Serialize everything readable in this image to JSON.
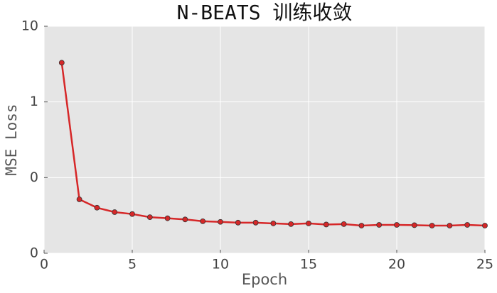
{
  "chart_data": {
    "type": "line",
    "title": "N-BEATS 训练收敛",
    "x_label": "Epoch",
    "y_label": "MSE Loss",
    "x": [
      1,
      2,
      3,
      4,
      5,
      6,
      7,
      8,
      9,
      10,
      11,
      12,
      13,
      14,
      15,
      16,
      17,
      18,
      19,
      20,
      21,
      22,
      23,
      24,
      25
    ],
    "series": [
      {
        "name": "MSE Loss",
        "color": "#d62728",
        "values": [
          3.3,
          0.0516,
          0.04,
          0.035,
          0.033,
          0.03,
          0.029,
          0.028,
          0.0265,
          0.026,
          0.0254,
          0.0254,
          0.0248,
          0.0243,
          0.0248,
          0.024,
          0.0243,
          0.0232,
          0.0237,
          0.0237,
          0.0235,
          0.0232,
          0.0232,
          0.0237,
          0.0232
        ]
      }
    ],
    "xlim": [
      0,
      25
    ],
    "xticks": [
      0,
      5,
      10,
      15,
      20,
      25
    ],
    "ylim": [
      0.01,
      10
    ],
    "yscale": "log",
    "yticks": [
      {
        "value": 0.01,
        "label": "0"
      },
      {
        "value": 0.1,
        "label": "0"
      },
      1,
      10
    ],
    "grid": true
  }
}
